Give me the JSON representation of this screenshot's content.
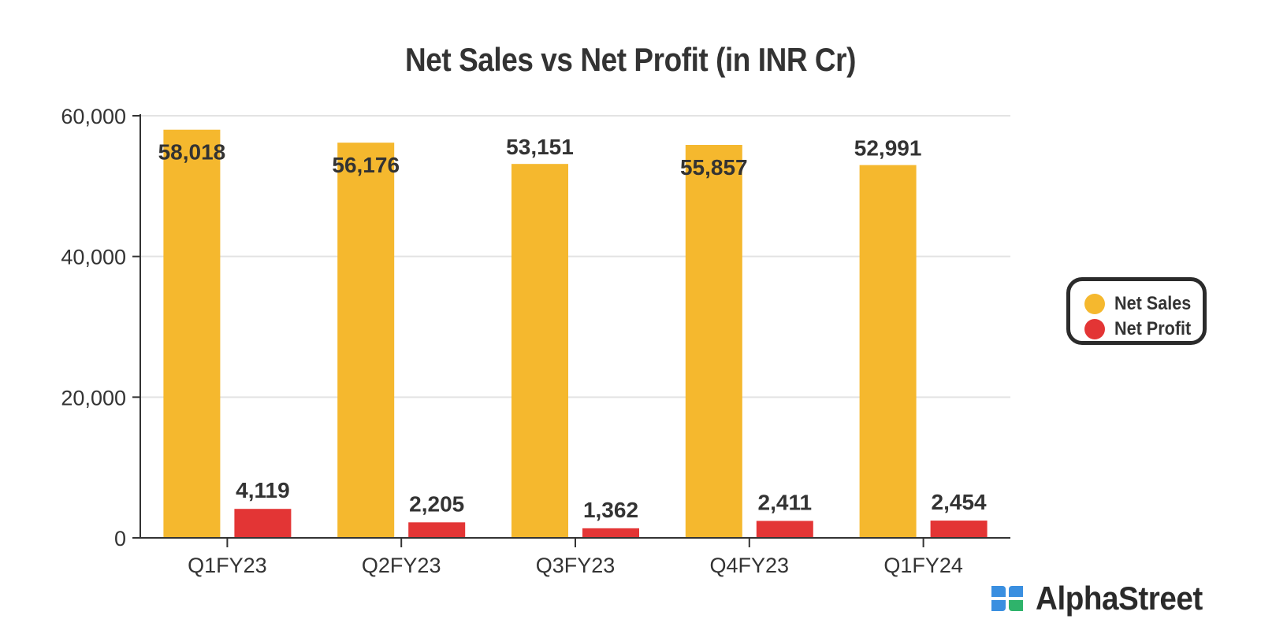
{
  "chart_data": {
    "type": "bar",
    "title": "Net Sales vs Net Profit (in INR Cr)",
    "categories": [
      "Q1FY23",
      "Q2FY23",
      "Q3FY23",
      "Q4FY23",
      "Q1FY24"
    ],
    "series": [
      {
        "name": "Net Sales",
        "values": [
          58018,
          56176,
          53151,
          55857,
          52991
        ],
        "labels": [
          "58,018",
          "56,176",
          "53,151",
          "55,857",
          "52,991"
        ],
        "color": "#f5b82e"
      },
      {
        "name": "Net Profit",
        "values": [
          4119,
          2205,
          1362,
          2411,
          2454
        ],
        "labels": [
          "4,119",
          "2,205",
          "1,362",
          "2,411",
          "2,454"
        ],
        "color": "#e33535"
      }
    ],
    "yticks": [
      0,
      20000,
      40000,
      60000
    ],
    "ytick_labels": [
      "0",
      "20,000",
      "40,000",
      "60,000"
    ],
    "ylim": [
      0,
      60000
    ],
    "grid": true,
    "legend_position": "right"
  },
  "branding": {
    "logo_text": "AlphaStreet",
    "logo_colors": [
      "#3a8fe0",
      "#2fb36b"
    ]
  }
}
